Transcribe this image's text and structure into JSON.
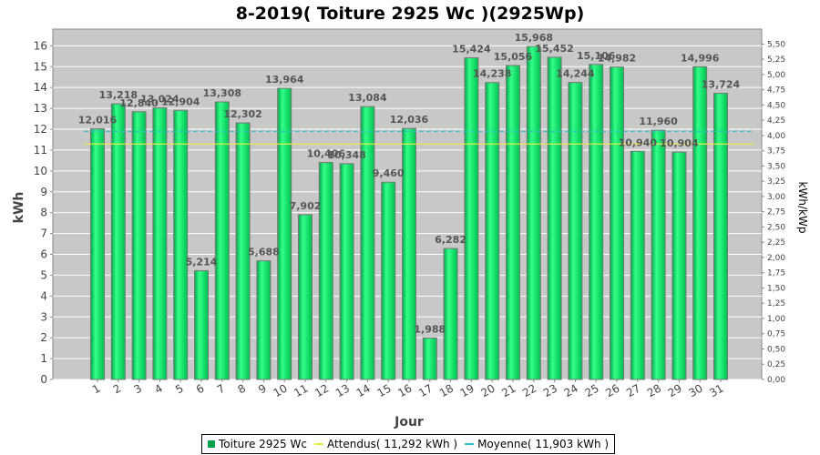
{
  "chart_data": {
    "type": "bar",
    "title": "8-2019( Toiture 2925 Wc )(2925Wp)",
    "xlabel": "Jour",
    "ylabel": "kWh",
    "y2label": "kWh/kWp",
    "categories": [
      "1",
      "2",
      "3",
      "4",
      "5",
      "6",
      "7",
      "8",
      "9",
      "10",
      "11",
      "12",
      "13",
      "14",
      "15",
      "16",
      "17",
      "18",
      "19",
      "20",
      "21",
      "22",
      "23",
      "24",
      "25",
      "26",
      "27",
      "28",
      "29",
      "30",
      "31"
    ],
    "series": [
      {
        "name": "Toiture 2925 Wc",
        "values": [
          12.016,
          13.218,
          12.84,
          13.024,
          12.904,
          5.214,
          13.308,
          12.302,
          5.688,
          13.964,
          7.902,
          10.406,
          10.348,
          13.084,
          9.46,
          12.036,
          1.988,
          6.282,
          15.424,
          14.238,
          15.056,
          15.968,
          15.452,
          14.244,
          15.106,
          14.982,
          10.94,
          11.96,
          10.904,
          14.996,
          13.724
        ],
        "labels": [
          "12,016",
          "13,218",
          "12,840",
          "13,024",
          "12,904",
          "5,214",
          "13,308",
          "12,302",
          "5,688",
          "13,964",
          "7,902",
          "10,406",
          "10,348",
          "13,084",
          "9,460",
          "12,036",
          "1,988",
          "6,282",
          "15,424",
          "14,238",
          "15,056",
          "15,968",
          "15,452",
          "14,244",
          "15,106",
          "14,982",
          "10,940",
          "11,960",
          "10,904",
          "14,996",
          "13,724"
        ],
        "color": "#00c853"
      }
    ],
    "ref_lines": [
      {
        "name": "Attendus( 11,292 kWh )",
        "value": 11.292,
        "color": "#e8e84a",
        "style": "solid"
      },
      {
        "name": "Moyenne( 11,903 kWh )",
        "value": 11.903,
        "color": "#33bbcc",
        "style": "dashed"
      }
    ],
    "ylim": [
      0,
      16.8
    ],
    "yticks": [
      "0",
      "1",
      "2",
      "3",
      "4",
      "5",
      "6",
      "7",
      "8",
      "9",
      "10",
      "11",
      "12",
      "13",
      "14",
      "15",
      "16"
    ],
    "y2ticks": [
      "0,00",
      "0,25",
      "0,50",
      "0,75",
      "1,00",
      "1,25",
      "1,50",
      "1,75",
      "2,00",
      "2,25",
      "2,50",
      "2,75",
      "3,00",
      "3,25",
      "3,50",
      "3,75",
      "4,00",
      "4,25",
      "4,50",
      "4,75",
      "5,00",
      "5,25",
      "5,50"
    ],
    "grid": true,
    "legend_position": "bottom",
    "colors": {
      "plot_bg": "#c8c8c8",
      "grid": "#ffffff",
      "bar": "#00c853",
      "bar_edge": "#777777"
    }
  }
}
